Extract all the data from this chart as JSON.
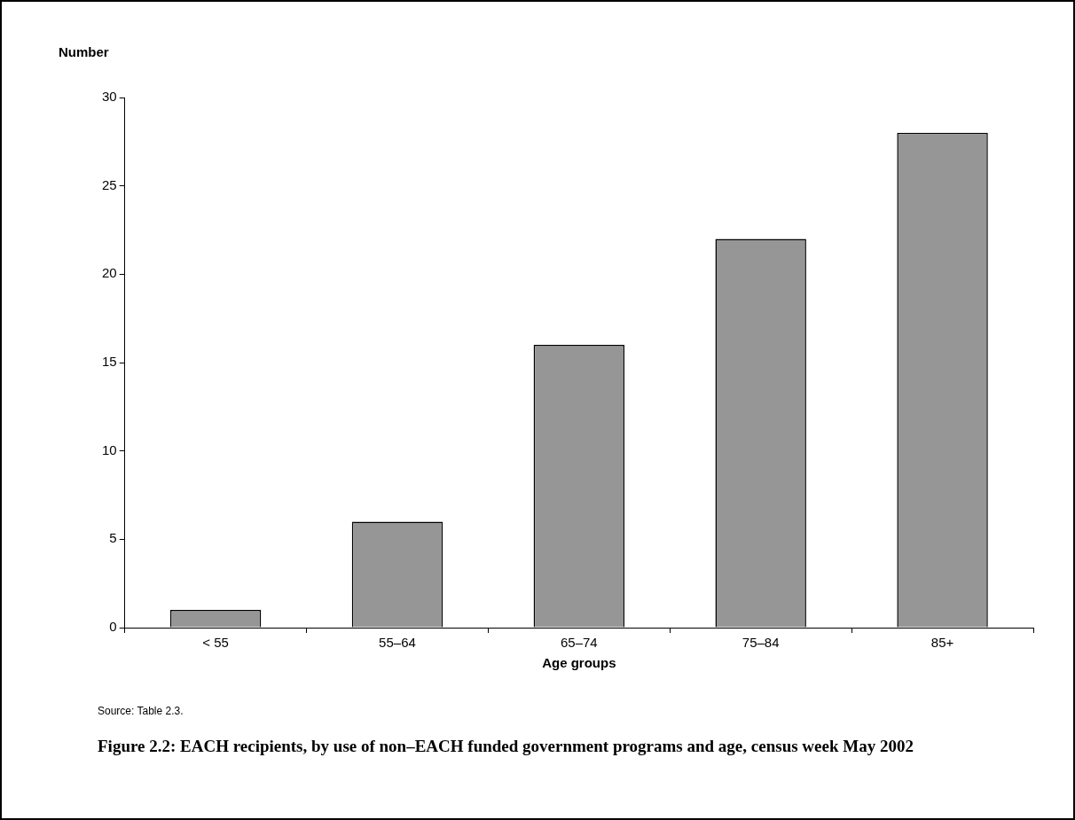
{
  "chart_data": {
    "type": "bar",
    "title": "Figure 2.2: EACH recipients, by use of non–EACH funded government programs and age, census week May 2002",
    "xlabel": "Age groups",
    "ylabel": "Number",
    "categories": [
      "< 55",
      "55–64",
      "65–74",
      "75–84",
      "85+"
    ],
    "values": [
      1,
      6,
      16,
      22,
      28
    ],
    "color": "#969696",
    "ylim": [
      0,
      30
    ],
    "yticks": [
      0,
      5,
      10,
      15,
      20,
      25,
      30
    ],
    "grid": false,
    "legend": false,
    "annotations": [
      "Source: Table 2.3."
    ]
  }
}
